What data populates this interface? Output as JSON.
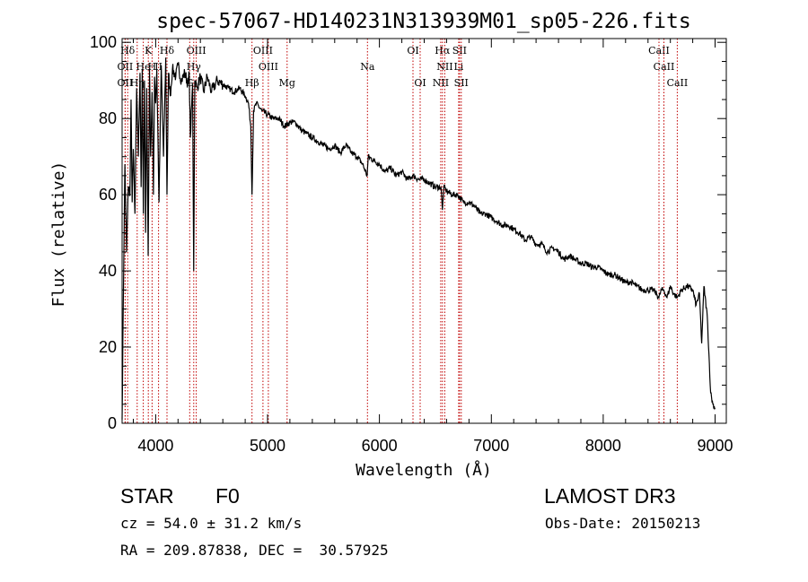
{
  "chart_data": {
    "type": "line",
    "title": "spec-57067-HD140231N313939M01_sp05-226.fits",
    "xlabel": "Wavelength (Å)",
    "ylabel": "Flux (relative)",
    "xlim": [
      3700,
      9100
    ],
    "ylim": [
      0,
      101
    ],
    "xticks": [
      4000,
      5000,
      6000,
      7000,
      8000,
      9000
    ],
    "yticks": [
      0,
      20,
      40,
      60,
      80,
      100
    ],
    "series": [
      {
        "name": "flux",
        "x": [
          3700,
          3710,
          3725,
          3740,
          3755,
          3770,
          3780,
          3790,
          3800,
          3815,
          3830,
          3845,
          3860,
          3870,
          3880,
          3890,
          3900,
          3910,
          3920,
          3933,
          3945,
          3955,
          3968,
          3980,
          3990,
          4000,
          4010,
          4030,
          4050,
          4070,
          4090,
          4101,
          4115,
          4130,
          4150,
          4180,
          4200,
          4230,
          4260,
          4290,
          4300,
          4310,
          4330,
          4340,
          4350,
          4370,
          4400,
          4430,
          4460,
          4500,
          4550,
          4600,
          4650,
          4700,
          4750,
          4800,
          4830,
          4850,
          4861,
          4875,
          4900,
          4950,
          5000,
          5050,
          5100,
          5150,
          5200,
          5250,
          5300,
          5350,
          5400,
          5450,
          5500,
          5550,
          5600,
          5650,
          5700,
          5750,
          5800,
          5850,
          5890,
          5900,
          5950,
          6000,
          6050,
          6100,
          6150,
          6200,
          6250,
          6300,
          6350,
          6400,
          6450,
          6500,
          6550,
          6563,
          6575,
          6600,
          6650,
          6700,
          6750,
          6800,
          6850,
          6900,
          6950,
          7000,
          7050,
          7100,
          7150,
          7200,
          7250,
          7300,
          7350,
          7400,
          7450,
          7500,
          7550,
          7600,
          7650,
          7700,
          7750,
          7800,
          7850,
          7900,
          7950,
          8000,
          8050,
          8100,
          8150,
          8200,
          8250,
          8300,
          8350,
          8400,
          8450,
          8498,
          8520,
          8542,
          8570,
          8600,
          8630,
          8662,
          8700,
          8750,
          8800,
          8830,
          8860,
          8880,
          8900,
          8930,
          8960,
          8980,
          9000
        ],
        "y": [
          1,
          30,
          68,
          45,
          62,
          60,
          85,
          58,
          72,
          55,
          88,
          70,
          92,
          62,
          93,
          55,
          90,
          50,
          88,
          44,
          93,
          70,
          87,
          60,
          91,
          84,
          93,
          58,
          94,
          70,
          96,
          60,
          92,
          86,
          93,
          91,
          94,
          90,
          92,
          89,
          92,
          75,
          89,
          40,
          90,
          88,
          91,
          87,
          91,
          87,
          90,
          89,
          88,
          87,
          88,
          86,
          84,
          78,
          60,
          82,
          84,
          82,
          81,
          80,
          80,
          78,
          79,
          79,
          77,
          76,
          75,
          74,
          73,
          72,
          73,
          71,
          73,
          71,
          70,
          68,
          65,
          70,
          69,
          68,
          66,
          67,
          65,
          66,
          64,
          65,
          64,
          64,
          63,
          62,
          62,
          56,
          62,
          61,
          60,
          60,
          58,
          58,
          57,
          55,
          55,
          54,
          53,
          52,
          52,
          51,
          50,
          48,
          49,
          47,
          47,
          45,
          46,
          45,
          43,
          44,
          43,
          42,
          42,
          41,
          41,
          40,
          39,
          39,
          38,
          37,
          37,
          36,
          35,
          35,
          35,
          33,
          35,
          35,
          33,
          36,
          34,
          33,
          35,
          36,
          35,
          31,
          34,
          21,
          36,
          28,
          8,
          5,
          4
        ]
      }
    ],
    "line_markers": [
      {
        "label": "Hδ",
        "wl": 3750,
        "row": 0
      },
      {
        "label": "K",
        "wl": 3934,
        "row": 0
      },
      {
        "label": "Hδ",
        "wl": 4101,
        "row": 0
      },
      {
        "label": "OIII",
        "wl": 4363,
        "row": 0
      },
      {
        "label": "OIII",
        "wl": 4959,
        "row": 0
      },
      {
        "label": "OI",
        "wl": 6300,
        "row": 0
      },
      {
        "label": "Hα",
        "wl": 6563,
        "row": 0
      },
      {
        "label": "SII",
        "wl": 6716,
        "row": 0
      },
      {
        "label": "CaII",
        "wl": 8498,
        "row": 0
      },
      {
        "label": "OII",
        "wl": 3727,
        "row": 1
      },
      {
        "label": "He",
        "wl": 3889,
        "row": 1
      },
      {
        "label": "H",
        "wl": 3968,
        "row": 1
      },
      {
        "label": "II",
        "wl": 4026,
        "row": 1
      },
      {
        "label": "Hγ",
        "wl": 4340,
        "row": 1
      },
      {
        "label": "OIII",
        "wl": 5007,
        "row": 1
      },
      {
        "label": "Na",
        "wl": 5893,
        "row": 1
      },
      {
        "label": "NII",
        "wl": 6584,
        "row": 1
      },
      {
        "label": "Li",
        "wl": 6708,
        "row": 1
      },
      {
        "label": "CaII",
        "wl": 8542,
        "row": 1
      },
      {
        "label": "OII",
        "wl": 3727,
        "row": 2
      },
      {
        "label": "Hη",
        "wl": 3835,
        "row": 2
      },
      {
        "label": "G",
        "wl": 4304,
        "row": 2
      },
      {
        "label": "Hβ",
        "wl": 4861,
        "row": 2
      },
      {
        "label": "Mg",
        "wl": 5175,
        "row": 2
      },
      {
        "label": "OI",
        "wl": 6364,
        "row": 2
      },
      {
        "label": "NII",
        "wl": 6548,
        "row": 2
      },
      {
        "label": "SII",
        "wl": 6731,
        "row": 2
      },
      {
        "label": "CaII",
        "wl": 8662,
        "row": 2
      }
    ]
  },
  "info": {
    "object_type": "STAR",
    "subclass": "F0",
    "survey": "LAMOST DR3",
    "cz": "cz = 54.0 ± 31.2 km/s",
    "obs_date": "Obs-Date: 20150213",
    "radec": "RA = 209.87838, DEC =  30.57925"
  }
}
